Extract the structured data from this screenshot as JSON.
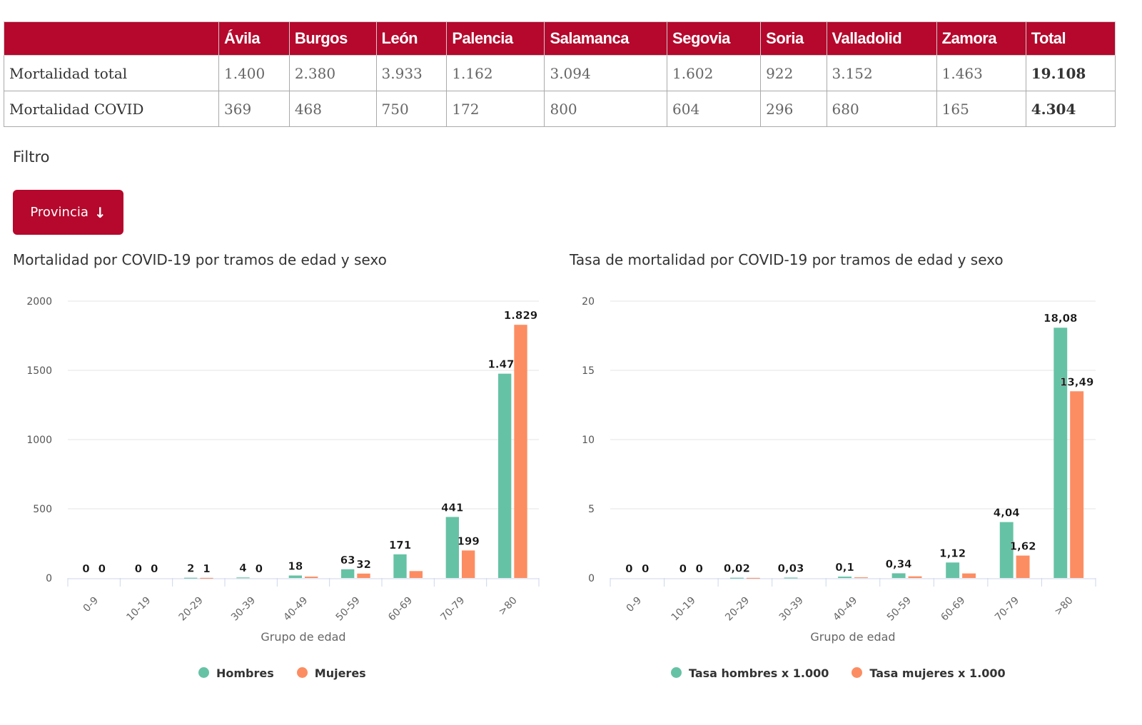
{
  "table": {
    "headers": [
      "",
      "Ávila",
      "Burgos",
      "León",
      "Palencia",
      "Salamanca",
      "Segovia",
      "Soria",
      "Valladolid",
      "Zamora",
      "Total"
    ],
    "rows": [
      [
        "Mortalidad total",
        "1.400",
        "2.380",
        "3.933",
        "1.162",
        "3.094",
        "1.602",
        "922",
        "3.152",
        "1.463",
        "19.108"
      ],
      [
        "Mortalidad COVID",
        "369",
        "468",
        "750",
        "172",
        "800",
        "604",
        "296",
        "680",
        "165",
        "4.304"
      ]
    ]
  },
  "filter": {
    "label": "Filtro",
    "button": "Provincia"
  },
  "colors": {
    "brand": "#b5082c",
    "hombres": "#66c2a5",
    "mujeres": "#fc8d62"
  },
  "chart_data": [
    {
      "type": "bar",
      "title": "Mortalidad por COVID-19 por tramos de edad y sexo",
      "xlabel": "Grupo de edad",
      "ylabel": "",
      "ylim": [
        0,
        2000
      ],
      "yticks": [
        "0",
        "500",
        "1000",
        "1500",
        "2000"
      ],
      "categories": [
        "0-9",
        "10-19",
        "20-29",
        "30-39",
        "40-49",
        "50-59",
        "60-69",
        "70-79",
        ">80"
      ],
      "series": [
        {
          "name": "Hombres",
          "values": [
            0,
            0,
            2,
            4,
            18,
            63,
            171,
            441,
            1476
          ],
          "labels": [
            "0",
            "0",
            "2",
            "4",
            "18",
            "63",
            "171",
            "441",
            "1.476"
          ]
        },
        {
          "name": "Mujeres",
          "values": [
            0,
            0,
            1,
            0,
            10,
            32,
            50,
            199,
            1829
          ],
          "labels": [
            "0",
            "0",
            "1",
            "0",
            "",
            "32",
            "",
            "199",
            "1.829"
          ]
        }
      ],
      "legend": "bottom",
      "grid": true
    },
    {
      "type": "bar",
      "title": "Tasa de mortalidad por COVID-19 por tramos de edad y sexo",
      "xlabel": "Grupo de edad",
      "ylabel": "",
      "ylim": [
        0,
        20
      ],
      "yticks": [
        "0",
        "5",
        "10",
        "15",
        "20"
      ],
      "categories": [
        "0-9",
        "10-19",
        "20-29",
        "30-39",
        "40-49",
        "50-59",
        "60-69",
        "70-79",
        ">80"
      ],
      "series": [
        {
          "name": "Tasa hombres x 1.000",
          "values": [
            0,
            0,
            0.02,
            0.03,
            0.1,
            0.34,
            1.12,
            4.04,
            18.08
          ],
          "labels": [
            "0",
            "0",
            "0,02",
            "0,03",
            "0,1",
            "0,34",
            "1,12",
            "4,04",
            "18,08"
          ]
        },
        {
          "name": "Tasa mujeres x 1.000",
          "values": [
            0,
            0,
            0.01,
            0,
            0.05,
            0.12,
            0.33,
            1.62,
            13.49
          ],
          "labels": [
            "0",
            "0",
            "",
            "",
            "",
            "",
            "",
            "1,62",
            "13,49"
          ]
        }
      ],
      "legend": "bottom",
      "grid": true
    }
  ]
}
